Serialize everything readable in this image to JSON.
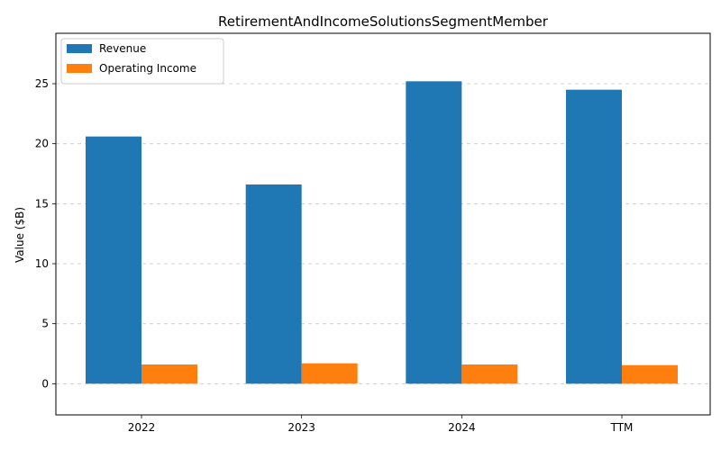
{
  "chart_data": {
    "type": "bar",
    "title": "RetirementAndIncomeSolutionsSegmentMember",
    "xlabel": "",
    "ylabel": "Value ($B)",
    "categories": [
      "2022",
      "2023",
      "2024",
      "TTM"
    ],
    "series": [
      {
        "name": "Revenue",
        "color": "#1f77b4",
        "values": [
          20.6,
          16.6,
          25.2,
          24.5
        ]
      },
      {
        "name": "Operating Income",
        "color": "#ff7f0e",
        "values": [
          1.6,
          1.7,
          1.6,
          1.55
        ]
      }
    ],
    "ylim": [
      -2.6,
      29.2
    ],
    "yticks": [
      0,
      5,
      10,
      15,
      20,
      25
    ],
    "grid": true,
    "legend": "top-left"
  }
}
